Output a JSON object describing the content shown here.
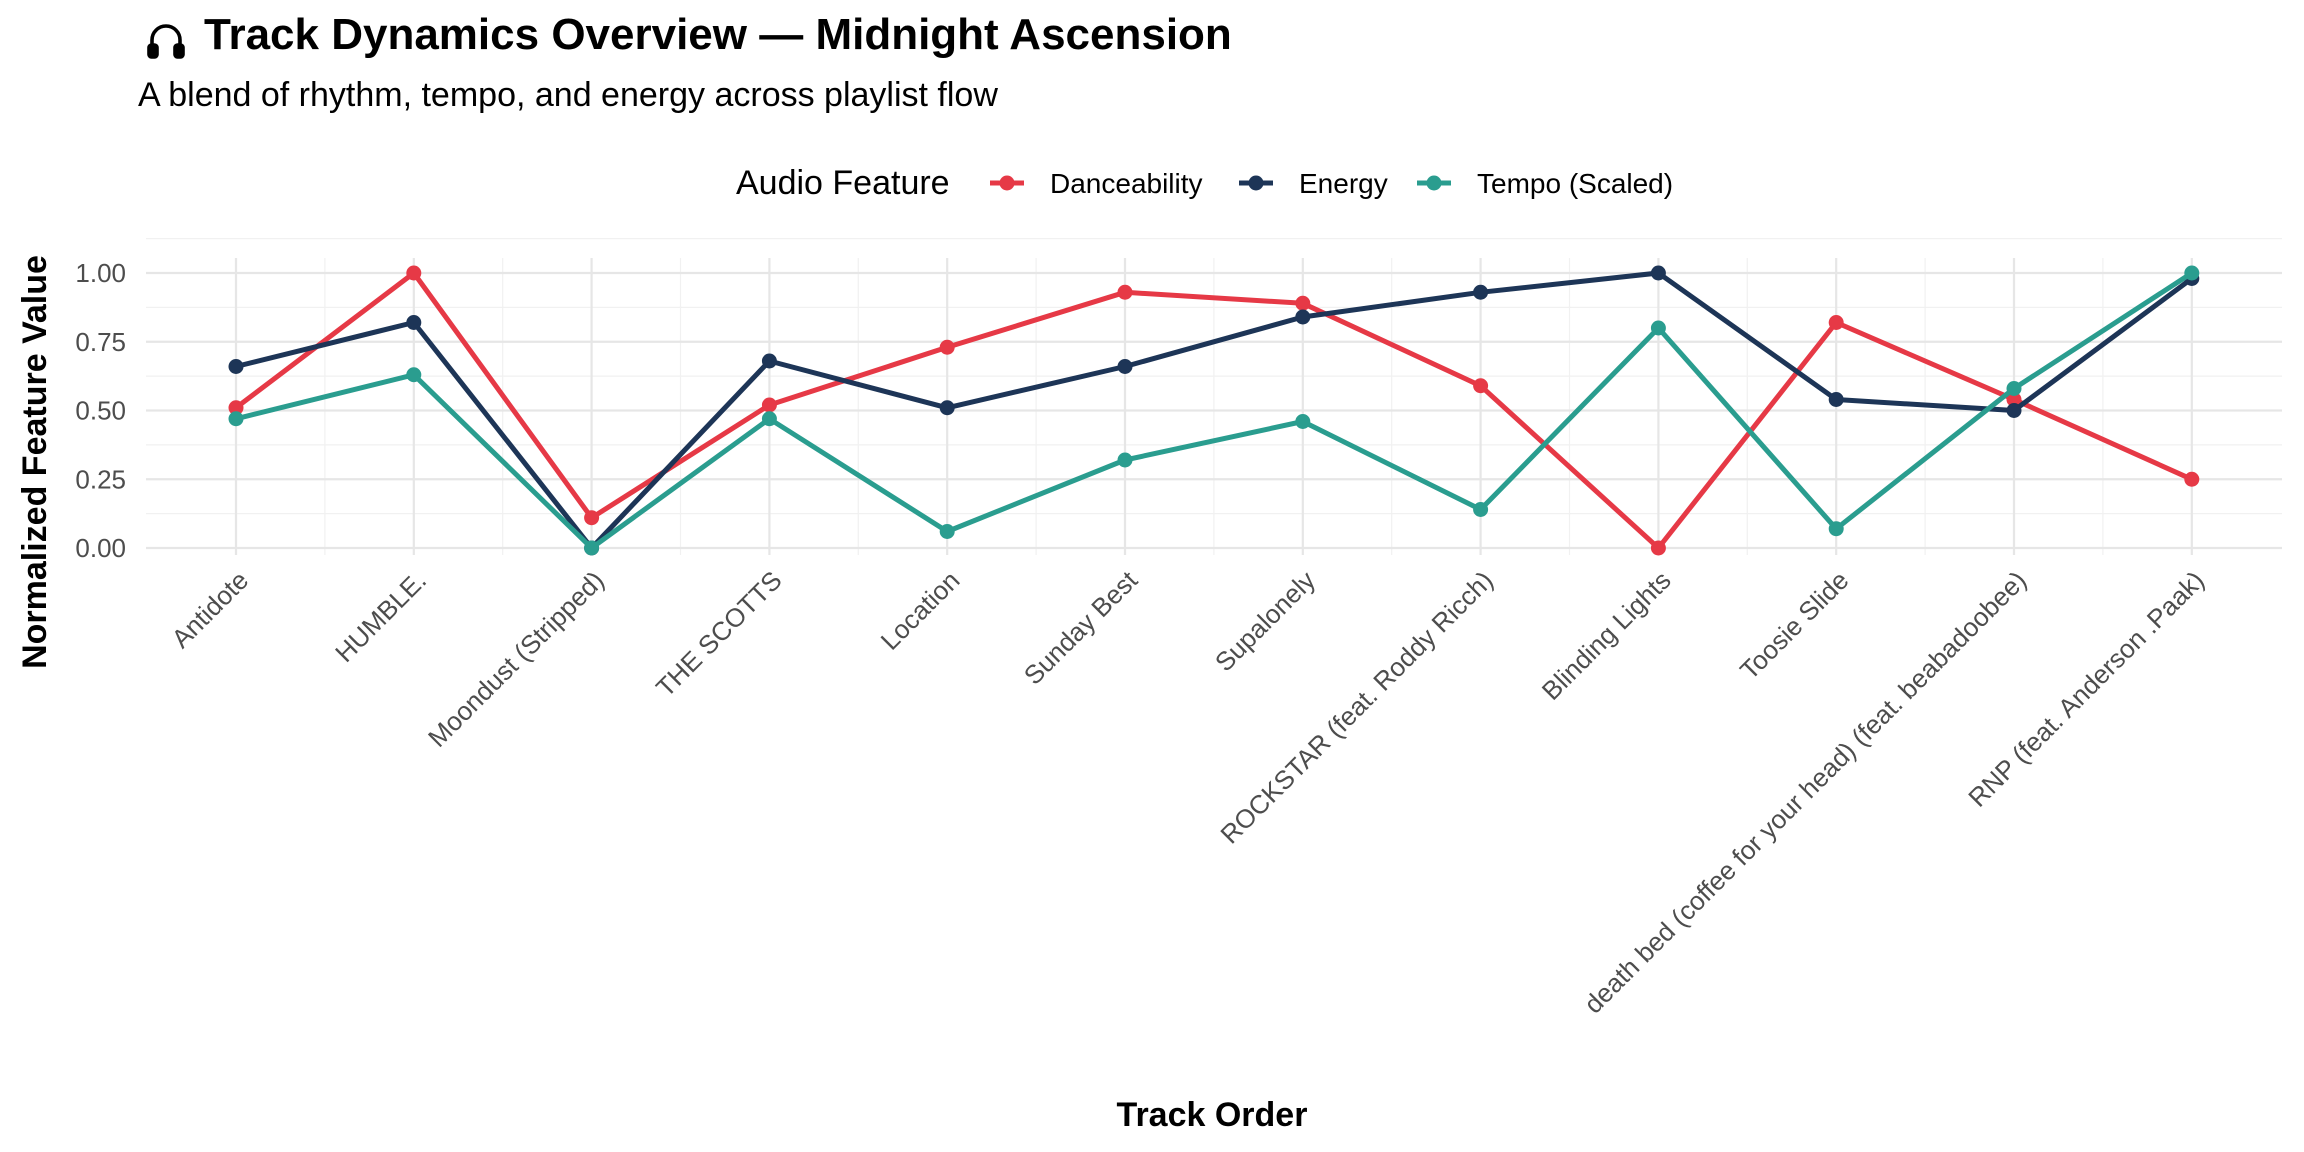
{
  "chart_data": {
    "type": "line",
    "title": "Track Dynamics Overview — Midnight Ascension",
    "title_icon": "headphones-icon",
    "subtitle": "A blend of rhythm, tempo, and energy across playlist flow",
    "xlabel": "Track Order",
    "ylabel": "Normalized Feature Value",
    "legend_title": "Audio Feature",
    "legend_position": "top",
    "grid": true,
    "ylim": [
      0,
      1
    ],
    "yticks": [
      "0.00",
      "0.25",
      "0.50",
      "0.75",
      "1.00"
    ],
    "categories": [
      "Antidote",
      "HUMBLE.",
      "Moondust (Stripped)",
      "THE SCOTTS",
      "Location",
      "Sunday Best",
      "Supalonely",
      "ROCKSTAR (feat. Roddy Ricch)",
      "Blinding Lights",
      "Toosie Slide",
      "death bed (coffee for your head) (feat. beabadoobee)",
      "RNP (feat. Anderson .Paak)"
    ],
    "series": [
      {
        "name": "Danceability",
        "color": "#e63946",
        "values": [
          0.51,
          1.0,
          0.11,
          0.52,
          0.73,
          0.93,
          0.89,
          0.59,
          0.0,
          0.82,
          0.54,
          0.25
        ]
      },
      {
        "name": "Energy",
        "color": "#1d3557",
        "values": [
          0.66,
          0.82,
          0.0,
          0.68,
          0.51,
          0.66,
          0.84,
          0.93,
          1.0,
          0.54,
          0.5,
          0.98
        ]
      },
      {
        "name": "Tempo (Scaled)",
        "color": "#2a9d8f",
        "values": [
          0.47,
          0.63,
          0.0,
          0.47,
          0.06,
          0.32,
          0.46,
          0.14,
          0.8,
          0.07,
          0.58,
          1.0
        ]
      }
    ]
  }
}
